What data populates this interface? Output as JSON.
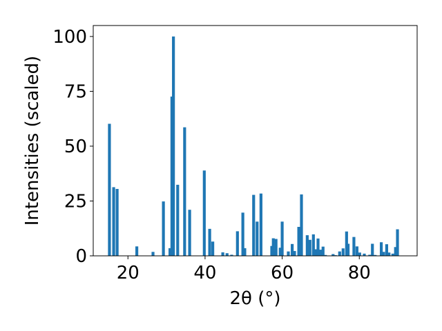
{
  "chart_data": {
    "type": "bar",
    "xlabel": "2θ (°)",
    "ylabel": "Intensities (scaled)",
    "xlim": [
      11,
      95
    ],
    "ylim": [
      0,
      105
    ],
    "xticks": [
      20,
      40,
      60,
      80
    ],
    "yticks": [
      0,
      25,
      50,
      75,
      100
    ],
    "grid": false,
    "bar_color": "#1f77b4",
    "bar_width_deg": 0.75,
    "series": [
      {
        "x": [
          15.2,
          16.3,
          17.2,
          22.3,
          26.5,
          29.2,
          30.9,
          31.4,
          31.8,
          32.9,
          34.7,
          36.0,
          39.8,
          41.2,
          42.0,
          44.6,
          45.7,
          46.9,
          48.4,
          49.8,
          50.3,
          52.6,
          53.5,
          54.5,
          57.3,
          57.7,
          58.0,
          58.4,
          59.5,
          60.0,
          61.6,
          62.6,
          63.2,
          64.3,
          65.0,
          66.5,
          67.2,
          68.1,
          68.6,
          69.3,
          70.0,
          70.6,
          71.2,
          73.2,
          73.8,
          74.9,
          75.8,
          76.7,
          77.1,
          78.6,
          79.4,
          80.1,
          81.3,
          82.7,
          83.4,
          84.1,
          85.7,
          86.3,
          87.1,
          87.7,
          88.7,
          89.4,
          89.9
        ],
        "values": [
          60.2,
          31.3,
          30.5,
          4.3,
          1.8,
          24.8,
          3.5,
          72.6,
          100.0,
          32.4,
          58.6,
          21.0,
          38.9,
          12.3,
          6.5,
          1.6,
          1.2,
          0.5,
          11.2,
          19.7,
          3.5,
          27.8,
          15.6,
          28.4,
          4.5,
          8.0,
          2.0,
          7.7,
          3.7,
          15.6,
          2.0,
          5.4,
          2.2,
          13.2,
          28.0,
          9.4,
          7.3,
          9.8,
          3.0,
          7.9,
          2.8,
          4.2,
          0.4,
          0.8,
          0.3,
          2.0,
          3.4,
          11.1,
          5.5,
          8.6,
          4.3,
          1.5,
          1.0,
          0.5,
          5.5,
          0.4,
          6.2,
          1.8,
          5.3,
          1.5,
          1.0,
          4.0,
          12.1
        ]
      }
    ]
  }
}
